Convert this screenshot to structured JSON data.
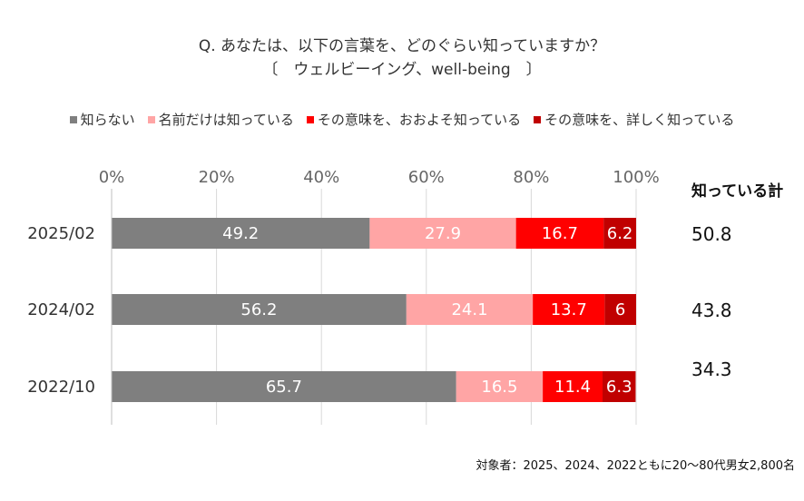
{
  "chart_data": {
    "type": "bar",
    "orientation": "horizontal",
    "stacked": true,
    "title": "Q. あなたは、以下の言葉を、どのぐらい知っていますか？",
    "subtitle": "〔　ウェルビーイング、well-being　〕",
    "categories": [
      "2025/02",
      "2024/02",
      "2022/10"
    ],
    "series": [
      {
        "name": "知らない",
        "color": "#7f7f7f",
        "values": [
          49.2,
          56.2,
          65.7
        ]
      },
      {
        "name": "名前だけは知っている",
        "color": "#ffa5a5",
        "values": [
          27.9,
          24.1,
          16.5
        ]
      },
      {
        "name": "その意味を、おおよそ知っている",
        "color": "#ff0000",
        "values": [
          16.7,
          13.7,
          11.4
        ]
      },
      {
        "name": "その意味を、詳しく知っている",
        "color": "#c00000",
        "values": [
          6.2,
          6,
          6.3
        ]
      }
    ],
    "xlim": [
      0,
      100
    ],
    "xticks": [
      "0%",
      "20%",
      "40%",
      "60%",
      "80%",
      "100%"
    ],
    "grid": "vertical",
    "legend_position": "top",
    "totals_header": "知っている計",
    "totals": [
      {
        "value": "50.8",
        "color": "#c00000"
      },
      {
        "value": "43.8",
        "color": "#111111"
      },
      {
        "value": "34.3",
        "color": "#111111"
      }
    ],
    "footnote": "対象者：2025、2024、2022ともに20～80代男女2,800名"
  }
}
